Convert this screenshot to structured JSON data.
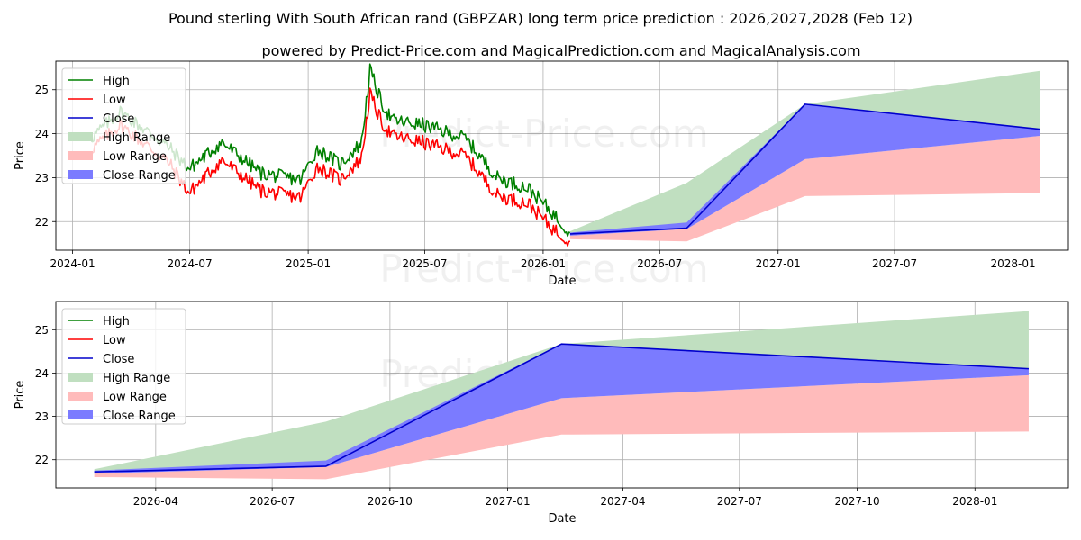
{
  "title": "Pound sterling With South African rand (GBPZAR) long term price prediction : 2026,2027,2028 (Feb 12)",
  "subtitle": "powered by Predict-Price.com and MagicalPrediction.com and MagicalAnalysis.com",
  "watermark": "Predict-Price.com",
  "colors": {
    "high": "#008000",
    "low": "#ff0000",
    "close": "#0000cc",
    "high_range": "#c0dfc0",
    "low_range": "#ffbbbb",
    "close_range": "#7b7bff",
    "grid": "#b0b0b0"
  },
  "chart_data": [
    {
      "type": "line",
      "id": "full",
      "xlabel": "Date",
      "ylabel": "Price",
      "xlim": [
        "2023-12-06",
        "2028-03-27"
      ],
      "ylim": [
        21.35,
        25.65
      ],
      "x_ticks": [
        "2024-01",
        "2024-07",
        "2025-01",
        "2025-07",
        "2026-01",
        "2026-07",
        "2027-01",
        "2027-07",
        "2028-01"
      ],
      "y_ticks": [
        22,
        23,
        24,
        25
      ],
      "grid": true,
      "legend": "top-left",
      "legend_entries": [
        "High",
        "Low",
        "Close",
        "High Range",
        "Low Range",
        "Close Range"
      ],
      "series": [
        {
          "name": "High",
          "x": [
            "2024-01-30",
            "2024-03-15",
            "2024-05-29",
            "2024-06-30",
            "2024-08-20",
            "2024-10-20",
            "2024-12-20",
            "2025-01-15",
            "2025-02-20",
            "2025-03-25",
            "2025-04-07",
            "2025-04-25",
            "2025-05-12",
            "2025-06-28",
            "2025-09-02",
            "2025-10-22",
            "2025-12-10",
            "2026-01-15",
            "2026-02-12"
          ],
          "values": [
            23.9,
            24.5,
            23.7,
            23.2,
            23.8,
            23.1,
            22.95,
            23.65,
            23.3,
            23.8,
            25.45,
            24.7,
            24.3,
            24.2,
            23.9,
            23.0,
            22.75,
            22.2,
            21.75
          ]
        },
        {
          "name": "Low",
          "x": [
            "2024-01-30",
            "2024-03-15",
            "2024-05-29",
            "2024-06-30",
            "2024-08-20",
            "2024-10-20",
            "2024-12-20",
            "2025-01-15",
            "2025-02-20",
            "2025-03-25",
            "2025-04-07",
            "2025-04-25",
            "2025-05-12",
            "2025-06-28",
            "2025-09-02",
            "2025-10-22",
            "2025-12-10",
            "2026-01-15",
            "2026-02-12"
          ],
          "values": [
            23.65,
            24.2,
            23.35,
            22.65,
            23.4,
            22.7,
            22.55,
            23.25,
            22.95,
            23.45,
            24.9,
            24.25,
            23.95,
            23.8,
            23.5,
            22.6,
            22.4,
            21.85,
            21.55
          ]
        },
        {
          "name": "Close",
          "x": [
            "2026-02-12",
            "2026-08-12",
            "2027-02-12",
            "2028-02-12"
          ],
          "values": [
            21.72,
            21.85,
            24.67,
            24.1
          ]
        }
      ],
      "ranges": [
        {
          "name": "High Range",
          "x": [
            "2026-02-12",
            "2026-08-12",
            "2027-02-12",
            "2028-02-12"
          ],
          "upper": [
            21.78,
            22.88,
            24.67,
            25.43
          ],
          "lower": [
            21.72,
            21.85,
            24.67,
            24.1
          ]
        },
        {
          "name": "Low Range",
          "x": [
            "2026-02-12",
            "2026-08-12",
            "2027-02-12",
            "2028-02-12"
          ],
          "upper": [
            21.68,
            21.83,
            23.42,
            23.95
          ],
          "lower": [
            21.6,
            21.55,
            22.58,
            22.65
          ]
        },
        {
          "name": "Close Range",
          "x": [
            "2026-02-12",
            "2026-08-12",
            "2027-02-12",
            "2028-02-12"
          ],
          "upper": [
            21.75,
            21.98,
            24.67,
            24.1
          ],
          "lower": [
            21.68,
            21.83,
            23.42,
            23.95
          ]
        }
      ]
    },
    {
      "type": "line",
      "id": "forecast",
      "xlabel": "Date",
      "ylabel": "Price",
      "xlim": [
        "2026-01-13",
        "2028-03-14"
      ],
      "ylim": [
        21.35,
        25.65
      ],
      "x_ticks": [
        "2026-04",
        "2026-07",
        "2026-10",
        "2027-01",
        "2027-04",
        "2027-07",
        "2027-10",
        "2028-01"
      ],
      "y_ticks": [
        22,
        23,
        24,
        25
      ],
      "grid": true,
      "legend": "top-left",
      "legend_entries": [
        "High",
        "Low",
        "Close",
        "High Range",
        "Low Range",
        "Close Range"
      ],
      "series": [
        {
          "name": "Close",
          "x": [
            "2026-02-12",
            "2026-08-12",
            "2027-02-12",
            "2028-02-12"
          ],
          "values": [
            21.72,
            21.85,
            24.67,
            24.1
          ]
        }
      ],
      "ranges": [
        {
          "name": "High Range",
          "x": [
            "2026-02-12",
            "2026-08-12",
            "2027-02-12",
            "2028-02-12"
          ],
          "upper": [
            21.78,
            22.88,
            24.67,
            25.43
          ],
          "lower": [
            21.72,
            21.85,
            24.67,
            24.1
          ]
        },
        {
          "name": "Low Range",
          "x": [
            "2026-02-12",
            "2026-08-12",
            "2027-02-12",
            "2028-02-12"
          ],
          "upper": [
            21.68,
            21.83,
            23.42,
            23.95
          ],
          "lower": [
            21.6,
            21.55,
            22.58,
            22.65
          ]
        },
        {
          "name": "Close Range",
          "x": [
            "2026-02-12",
            "2026-08-12",
            "2027-02-12",
            "2028-02-12"
          ],
          "upper": [
            21.75,
            21.98,
            24.67,
            24.1
          ],
          "lower": [
            21.68,
            21.83,
            23.42,
            23.95
          ]
        }
      ]
    }
  ]
}
